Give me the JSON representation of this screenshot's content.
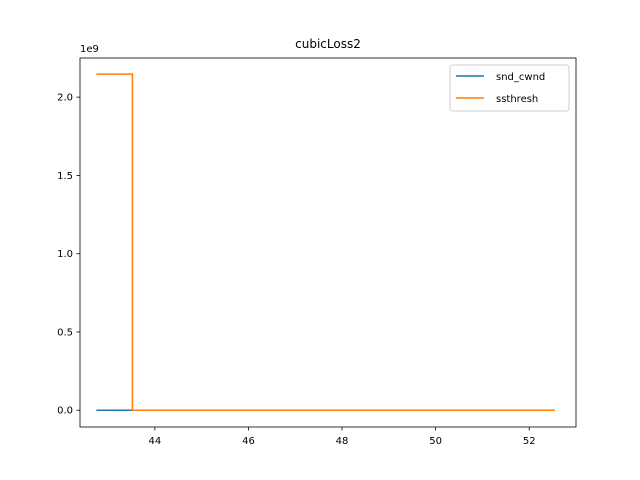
{
  "chart_data": {
    "type": "line",
    "title": "cubicLoss2",
    "xlabel": "",
    "ylabel": "",
    "y_offset_label": "1e9",
    "xlim": [
      42.4,
      53.0
    ],
    "ylim": [
      -0.107,
      2.25
    ],
    "x_ticks": [
      44,
      46,
      48,
      50,
      52
    ],
    "x_tick_labels": [
      "44",
      "46",
      "48",
      "50",
      "52"
    ],
    "y_ticks": [
      0.0,
      0.5,
      1.0,
      1.5,
      2.0
    ],
    "y_tick_labels": [
      "0.0",
      "0.5",
      "1.0",
      "1.5",
      "2.0"
    ],
    "grid": false,
    "legend_position": "top-right",
    "series": [
      {
        "name": "snd_cwnd",
        "color": "#1f77b4",
        "x": [
          42.75,
          43.52,
          52.55
        ],
        "values": [
          0.0,
          0.0,
          0.0
        ]
      },
      {
        "name": "ssthresh",
        "color": "#ff7f0e",
        "x": [
          42.75,
          43.52,
          43.52,
          52.55
        ],
        "values": [
          2.147,
          2.147,
          0.0,
          0.0
        ]
      }
    ]
  }
}
